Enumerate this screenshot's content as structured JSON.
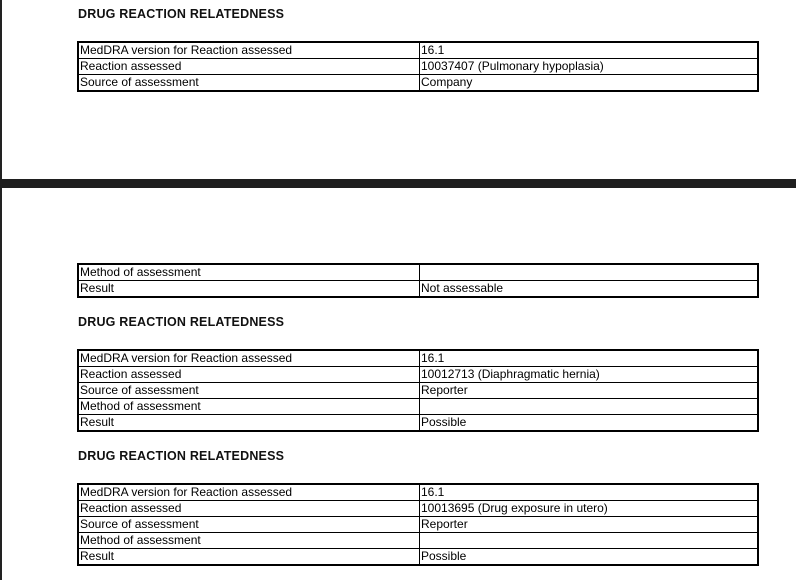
{
  "heading": "DRUG REACTION RELATEDNESS",
  "tables": [
    {
      "rows": [
        [
          "MedDRA version for Reaction assessed",
          "16.1"
        ],
        [
          "Reaction assessed",
          "10037407 (Pulmonary hypoplasia)"
        ],
        [
          "Source of assessment",
          "Company"
        ]
      ]
    },
    {
      "rows": [
        [
          "Method of assessment",
          ""
        ],
        [
          "Result",
          "Not assessable"
        ]
      ]
    },
    {
      "rows": [
        [
          "MedDRA version for Reaction assessed",
          "16.1"
        ],
        [
          "Reaction assessed",
          "10012713 (Diaphragmatic hernia)"
        ],
        [
          "Source of assessment",
          "Reporter"
        ],
        [
          "Method of assessment",
          ""
        ],
        [
          "Result",
          "Possible"
        ]
      ]
    },
    {
      "rows": [
        [
          "MedDRA version for Reaction assessed",
          "16.1"
        ],
        [
          "Reaction assessed",
          "10013695 (Drug exposure in utero)"
        ],
        [
          "Source of assessment",
          "Reporter"
        ],
        [
          "Method of assessment",
          ""
        ],
        [
          "Result",
          "Possible"
        ]
      ]
    }
  ]
}
